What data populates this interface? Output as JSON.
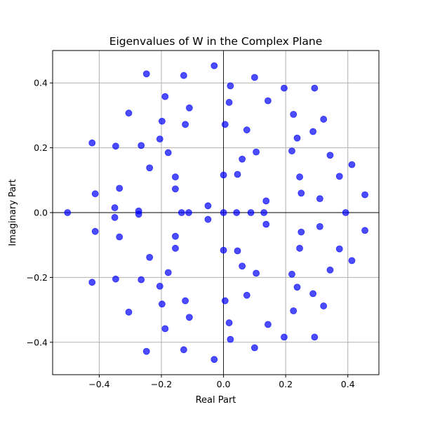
{
  "chart_data": {
    "type": "scatter",
    "title": "Eigenvalues of W in the Complex Plane",
    "xlabel": "Real Part",
    "ylabel": "Imaginary Part",
    "xlim": [
      -0.55,
      0.5
    ],
    "ylim": [
      -0.5,
      0.5
    ],
    "xticks": [
      -0.4,
      -0.2,
      0.0,
      0.2,
      0.4
    ],
    "yticks": [
      -0.4,
      -0.2,
      0.0,
      0.2,
      0.4
    ],
    "xtick_labels": [
      "−0.4",
      "−0.2",
      "0.0",
      "0.2",
      "0.4"
    ],
    "ytick_labels": [
      "−0.4",
      "−0.2",
      "0.0",
      "0.2",
      "0.4"
    ],
    "grid": true,
    "reference_lines": {
      "x": 0,
      "y": 0
    },
    "point_color": "#0000ff",
    "point_alpha": 0.7,
    "points": [
      [
        -0.502,
        0.0
      ],
      [
        -0.423,
        0.215
      ],
      [
        -0.423,
        -0.215
      ],
      [
        -0.413,
        0.058
      ],
      [
        -0.413,
        -0.058
      ],
      [
        -0.35,
        0.015
      ],
      [
        -0.35,
        -0.015
      ],
      [
        -0.347,
        0.205
      ],
      [
        -0.347,
        -0.205
      ],
      [
        -0.335,
        0.075
      ],
      [
        -0.335,
        -0.075
      ],
      [
        -0.305,
        0.307
      ],
      [
        -0.305,
        -0.307
      ],
      [
        -0.273,
        0.005
      ],
      [
        -0.273,
        -0.005
      ],
      [
        -0.265,
        0.207
      ],
      [
        -0.265,
        -0.207
      ],
      [
        -0.248,
        0.428
      ],
      [
        -0.248,
        -0.428
      ],
      [
        -0.238,
        0.138
      ],
      [
        -0.238,
        -0.138
      ],
      [
        -0.205,
        0.227
      ],
      [
        -0.205,
        -0.227
      ],
      [
        -0.198,
        0.282
      ],
      [
        -0.198,
        -0.282
      ],
      [
        -0.188,
        0.358
      ],
      [
        -0.188,
        -0.358
      ],
      [
        -0.178,
        0.185
      ],
      [
        -0.178,
        -0.185
      ],
      [
        -0.155,
        0.11
      ],
      [
        -0.155,
        -0.11
      ],
      [
        -0.155,
        0.073
      ],
      [
        -0.155,
        -0.073
      ],
      [
        -0.135,
        0.0
      ],
      [
        -0.112,
        0.0
      ],
      [
        -0.128,
        0.423
      ],
      [
        -0.128,
        -0.423
      ],
      [
        -0.123,
        0.272
      ],
      [
        -0.123,
        -0.272
      ],
      [
        -0.11,
        0.323
      ],
      [
        -0.11,
        -0.323
      ],
      [
        -0.05,
        0.021
      ],
      [
        -0.05,
        -0.021
      ],
      [
        -0.03,
        0.453
      ],
      [
        -0.03,
        -0.453
      ],
      [
        0.0,
        0.0
      ],
      [
        0.0,
        0.116
      ],
      [
        0.0,
        -0.116
      ],
      [
        0.005,
        0.272
      ],
      [
        0.005,
        -0.272
      ],
      [
        0.018,
        0.34
      ],
      [
        0.018,
        -0.34
      ],
      [
        0.022,
        0.391
      ],
      [
        0.022,
        -0.391
      ],
      [
        0.042,
        0.0
      ],
      [
        0.045,
        0.118
      ],
      [
        0.045,
        -0.118
      ],
      [
        0.06,
        0.165
      ],
      [
        0.06,
        -0.165
      ],
      [
        0.075,
        0.255
      ],
      [
        0.075,
        -0.255
      ],
      [
        0.088,
        0.0
      ],
      [
        0.1,
        0.417
      ],
      [
        0.1,
        -0.417
      ],
      [
        0.105,
        0.187
      ],
      [
        0.105,
        -0.187
      ],
      [
        0.13,
        0.0
      ],
      [
        0.137,
        0.036
      ],
      [
        0.137,
        -0.036
      ],
      [
        0.143,
        0.345
      ],
      [
        0.143,
        -0.345
      ],
      [
        0.195,
        0.384
      ],
      [
        0.195,
        -0.384
      ],
      [
        0.22,
        0.19
      ],
      [
        0.22,
        -0.19
      ],
      [
        0.225,
        0.303
      ],
      [
        0.225,
        -0.303
      ],
      [
        0.237,
        0.23
      ],
      [
        0.237,
        -0.23
      ],
      [
        0.245,
        0.11
      ],
      [
        0.245,
        -0.11
      ],
      [
        0.25,
        0.06
      ],
      [
        0.25,
        -0.06
      ],
      [
        0.288,
        0.25
      ],
      [
        0.288,
        -0.25
      ],
      [
        0.293,
        0.384
      ],
      [
        0.293,
        -0.384
      ],
      [
        0.31,
        0.043
      ],
      [
        0.31,
        -0.043
      ],
      [
        0.322,
        0.288
      ],
      [
        0.322,
        -0.288
      ],
      [
        0.343,
        0.177
      ],
      [
        0.343,
        -0.177
      ],
      [
        0.373,
        0.112
      ],
      [
        0.373,
        -0.112
      ],
      [
        0.393,
        0.0
      ],
      [
        0.413,
        0.148
      ],
      [
        0.413,
        -0.148
      ],
      [
        0.455,
        0.055
      ],
      [
        0.455,
        -0.055
      ]
    ]
  }
}
